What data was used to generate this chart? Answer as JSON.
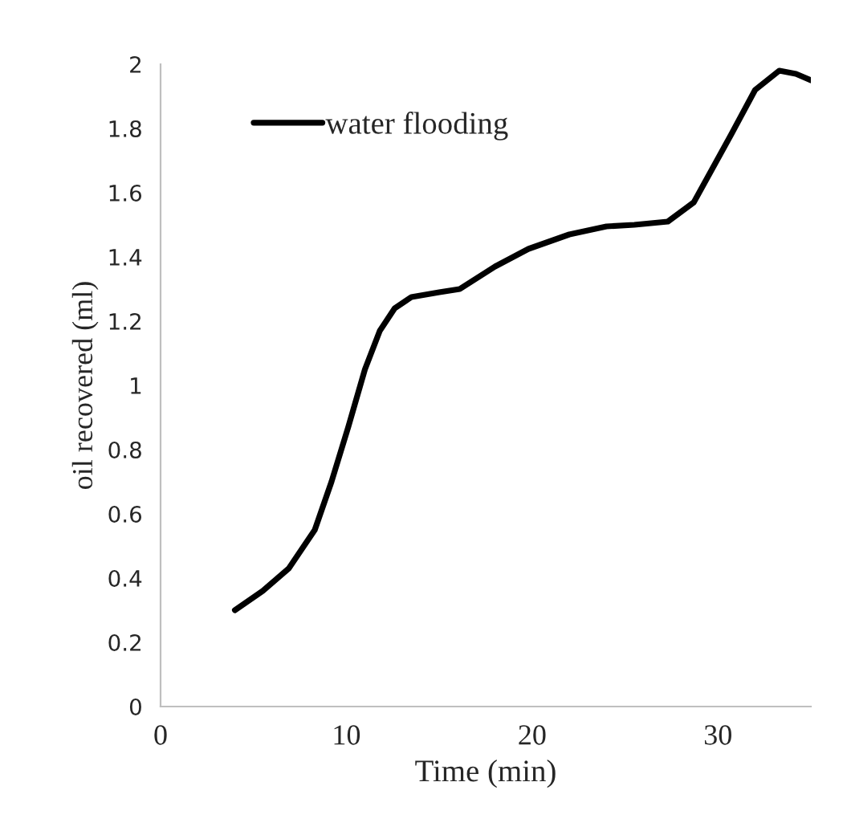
{
  "chart_data": {
    "type": "line",
    "xlabel": "Time (min)",
    "ylabel": "oil recovered (ml)",
    "series": [
      {
        "name": "water flooding",
        "color": "#000000",
        "x": [
          4,
          5.5,
          6.9,
          8.3,
          9.2,
          10.1,
          11,
          11.8,
          12.6,
          13.5,
          15,
          16.1,
          18,
          19.8,
          22,
          24,
          25.5,
          27.3,
          28.7,
          30.7,
          32,
          33.3,
          34.2,
          35
        ],
        "values": [
          0.3,
          0.36,
          0.43,
          0.55,
          0.7,
          0.87,
          1.05,
          1.17,
          1.24,
          1.275,
          1.29,
          1.3,
          1.37,
          1.425,
          1.47,
          1.495,
          1.5,
          1.51,
          1.57,
          1.78,
          1.92,
          1.98,
          1.97,
          1.95
        ]
      }
    ],
    "xlim": [
      0,
      35
    ],
    "xticks": [
      0,
      10,
      20,
      30
    ],
    "ylim": [
      0,
      2
    ],
    "yticks": [
      0,
      0.2,
      0.4,
      0.6,
      0.8,
      1,
      1.2,
      1.4,
      1.6,
      1.8,
      2
    ],
    "grid": false,
    "legend": "top left",
    "marker": "none",
    "line_style": "solid"
  }
}
